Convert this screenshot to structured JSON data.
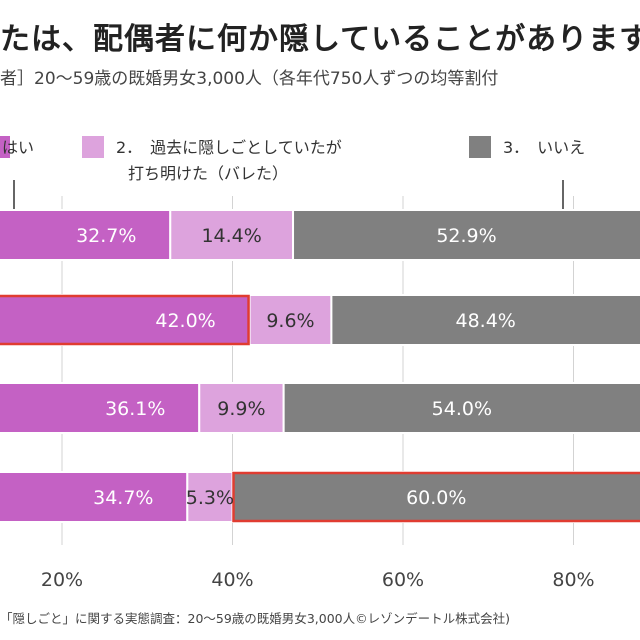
{
  "title": "たは、配偶者に何か隠していることがありますか",
  "subtitle": "者］20～59歳の既婚男女3,000人（各年代750人ずつの均等割付",
  "footer": "「隠しごと」に関する実態調査：20～59歳の既婚男女3,000人©レゾンデートル株式会社)",
  "legend": [
    {
      "label": "はい",
      "color": "#c461c4"
    },
    {
      "label": "2．　過去に隠しごとしていたが",
      "label2": "打ち明けた（バレた）",
      "color": "#dda3dd"
    },
    {
      "label": "3．　いいえ",
      "color": "#808080"
    }
  ],
  "colors": {
    "highlight_border": "#e03c31",
    "grid": "#d3d3d3"
  },
  "chart_data": {
    "type": "bar",
    "orientation": "horizontal",
    "stacked": true,
    "x_tick_labels": [
      "20%",
      "40%",
      "60%",
      "80%"
    ],
    "xlim": [
      0,
      100
    ],
    "categories": [
      "",
      "",
      "",
      ""
    ],
    "series": [
      {
        "name": "はい",
        "values": [
          32.7,
          42.0,
          36.1,
          34.7
        ],
        "labels": [
          "32.7%",
          "42.0%",
          "36.1%",
          "34.7%"
        ]
      },
      {
        "name": "過去に隠しごとしていたが打ち明けた（バレた）",
        "values": [
          14.4,
          9.6,
          9.9,
          5.3
        ],
        "labels": [
          "14.4%",
          "9.6%",
          "9.9%",
          "5.3%"
        ]
      },
      {
        "name": "いいえ",
        "values": [
          52.9,
          48.4,
          54.0,
          60.0
        ],
        "labels": [
          "52.9%",
          "48.4%",
          "54.0%",
          "60.0%"
        ]
      }
    ],
    "highlighted": [
      {
        "row": 1,
        "series": 0
      },
      {
        "row": 3,
        "series": 2
      }
    ]
  }
}
